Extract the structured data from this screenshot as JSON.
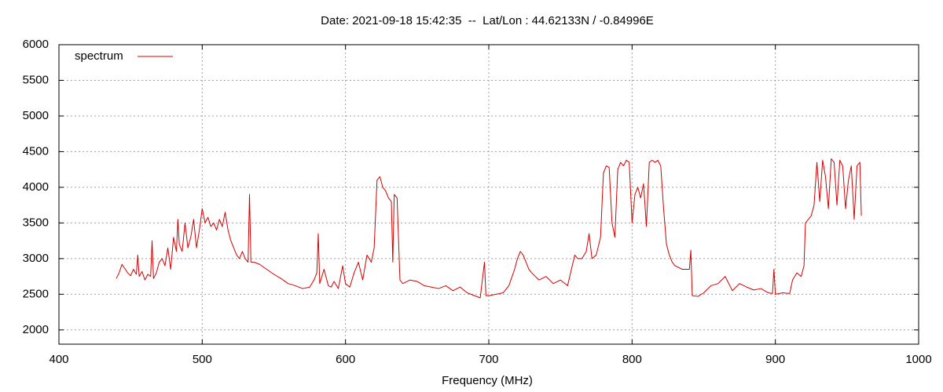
{
  "chart_data": {
    "type": "line",
    "title": "Date: 2021-09-18 15:42:35  --  Lat/Lon : 44.62133N / -0.84996E",
    "x_label": "Frequency (MHz)",
    "xlim": [
      400,
      1000
    ],
    "xticks": [
      400,
      500,
      600,
      700,
      800,
      900,
      1000
    ],
    "ylim": [
      1800,
      6000
    ],
    "yticks": [
      2000,
      2500,
      3000,
      3500,
      4000,
      4500,
      5000,
      5500,
      6000
    ],
    "grid": true,
    "legend": "top-left",
    "x": [
      440,
      442,
      444,
      446,
      448,
      450,
      452,
      454,
      455,
      456,
      458,
      460,
      462,
      464,
      465,
      466,
      468,
      470,
      472,
      474,
      476,
      478,
      480,
      482,
      483,
      484,
      486,
      488,
      490,
      492,
      494,
      496,
      498,
      500,
      502,
      504,
      506,
      508,
      510,
      512,
      514,
      516,
      518,
      520,
      522,
      524,
      526,
      528,
      530,
      532,
      533,
      534,
      536,
      540,
      545,
      550,
      555,
      560,
      565,
      570,
      575,
      578,
      580,
      581,
      582,
      585,
      588,
      590,
      592,
      595,
      598,
      600,
      603,
      606,
      609,
      612,
      615,
      618,
      620,
      622,
      624,
      626,
      628,
      630,
      632,
      633,
      634,
      636,
      638,
      640,
      645,
      650,
      655,
      660,
      665,
      670,
      675,
      680,
      685,
      690,
      694,
      697,
      698,
      700,
      705,
      710,
      714,
      718,
      720,
      722,
      724,
      726,
      728,
      730,
      735,
      740,
      745,
      750,
      755,
      760,
      762,
      765,
      768,
      770,
      772,
      775,
      778,
      780,
      782,
      784,
      786,
      788,
      790,
      792,
      794,
      796,
      798,
      800,
      802,
      804,
      806,
      808,
      810,
      812,
      814,
      816,
      818,
      820,
      822,
      824,
      826,
      828,
      830,
      835,
      840,
      841,
      842,
      846,
      850,
      855,
      860,
      865,
      870,
      875,
      880,
      885,
      890,
      895,
      898,
      899,
      900,
      905,
      910,
      912,
      915,
      918,
      920,
      921,
      923,
      925,
      927,
      929,
      931,
      933,
      935,
      937,
      939,
      941,
      943,
      945,
      947,
      949,
      951,
      953,
      955,
      957,
      959,
      960
    ],
    "series": [
      {
        "name": "spectrum",
        "color": "#d40000",
        "values": [
          2720,
          2800,
          2920,
          2860,
          2800,
          2760,
          2850,
          2780,
          3050,
          2750,
          2820,
          2700,
          2780,
          2750,
          3250,
          2720,
          2800,
          2950,
          3000,
          2900,
          3150,
          2850,
          3300,
          3100,
          3550,
          3200,
          3100,
          3500,
          3150,
          3300,
          3550,
          3150,
          3400,
          3700,
          3500,
          3580,
          3450,
          3500,
          3400,
          3550,
          3450,
          3650,
          3400,
          3250,
          3150,
          3050,
          3000,
          3100,
          3000,
          2950,
          3900,
          2950,
          2950,
          2920,
          2850,
          2780,
          2720,
          2650,
          2620,
          2580,
          2600,
          2700,
          2800,
          3350,
          2650,
          2850,
          2620,
          2600,
          2680,
          2580,
          2900,
          2650,
          2600,
          2800,
          2950,
          2700,
          3050,
          2950,
          3150,
          4100,
          4150,
          4000,
          3950,
          3850,
          3800,
          2950,
          3900,
          3850,
          2700,
          2650,
          2700,
          2680,
          2620,
          2600,
          2580,
          2620,
          2550,
          2600,
          2520,
          2480,
          2450,
          2950,
          2480,
          2480,
          2500,
          2520,
          2620,
          2850,
          3000,
          3100,
          3050,
          2950,
          2850,
          2800,
          2700,
          2750,
          2650,
          2700,
          2620,
          3050,
          3000,
          3000,
          3100,
          3350,
          3000,
          3050,
          3300,
          4200,
          4300,
          4280,
          3500,
          3300,
          4250,
          4350,
          4300,
          4380,
          4350,
          3500,
          3900,
          4000,
          3850,
          4050,
          3450,
          4350,
          4380,
          4350,
          4380,
          4300,
          3700,
          3200,
          3050,
          2950,
          2900,
          2850,
          2850,
          3120,
          2480,
          2470,
          2520,
          2620,
          2650,
          2750,
          2550,
          2650,
          2600,
          2560,
          2580,
          2520,
          2510,
          2850,
          2500,
          2520,
          2510,
          2700,
          2800,
          2750,
          2900,
          3500,
          3550,
          3600,
          3750,
          4350,
          3800,
          4380,
          4150,
          3700,
          4400,
          4350,
          3750,
          4380,
          4300,
          3700,
          4100,
          4300,
          3550,
          4300,
          4350,
          3600
        ]
      }
    ]
  }
}
